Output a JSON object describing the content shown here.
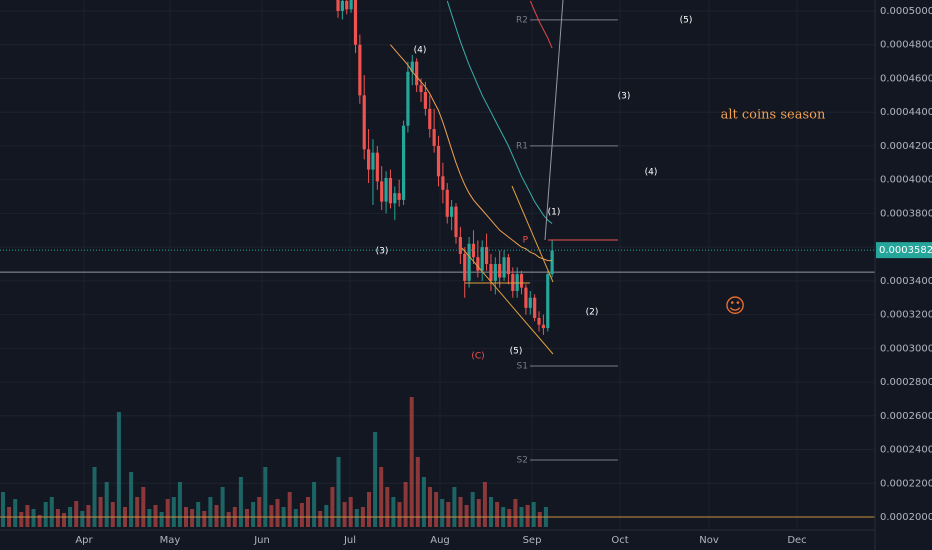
{
  "chart_data": {
    "type": "candlestick",
    "ylim": [
      0.0001923,
      0.00050652
    ],
    "yticks": [
      {
        "value": 0.0005,
        "label": "0.00050000"
      },
      {
        "value": 0.00048,
        "label": "0.00048000"
      },
      {
        "value": 0.00046,
        "label": "0.00046000"
      },
      {
        "value": 0.00044,
        "label": "0.00044000"
      },
      {
        "value": 0.00042,
        "label": "0.00042000"
      },
      {
        "value": 0.0004,
        "label": "0.00040000"
      },
      {
        "value": 0.00038,
        "label": "0.00038000"
      },
      {
        "value": 0.00036,
        "label": "0.00036000"
      },
      {
        "value": 0.00034,
        "label": "0.00034000"
      },
      {
        "value": 0.00032,
        "label": "0.00032000"
      },
      {
        "value": 0.0003,
        "label": "0.00030000"
      },
      {
        "value": 0.00028,
        "label": "0.00028000"
      },
      {
        "value": 0.00026,
        "label": "0.00026000"
      },
      {
        "value": 0.00024,
        "label": "0.00024000"
      },
      {
        "value": 0.00022,
        "label": "0.00022000"
      },
      {
        "value": 0.0002,
        "label": "0.00020000"
      }
    ],
    "months": [
      "Apr",
      "May",
      "Jun",
      "Jul",
      "Aug",
      "Sep",
      "Oct",
      "Nov",
      "Dec"
    ],
    "up_color": "#26a69a",
    "down_color": "#ef5350",
    "candles": [
      [
        0.000508,
        0.000512,
        0.000496,
        0.0005
      ],
      [
        0.0005,
        0.000509,
        0.000495,
        0.000506
      ],
      [
        0.000506,
        0.00051,
        0.000498,
        0.000501
      ],
      [
        0.000501,
        0.000513,
        0.000499,
        0.000509
      ],
      [
        0.000509,
        0.000514,
        0.000475,
        0.00048
      ],
      [
        0.00048,
        0.000486,
        0.000445,
        0.00045
      ],
      [
        0.00045,
        0.000462,
        0.000412,
        0.000418
      ],
      [
        0.000418,
        0.00043,
        0.000398,
        0.000406
      ],
      [
        0.000406,
        0.000424,
        0.000385,
        0.000416
      ],
      [
        0.000416,
        0.00042,
        0.000394,
        0.000399
      ],
      [
        0.000399,
        0.000408,
        0.000382,
        0.000387
      ],
      [
        0.000387,
        0.000405,
        0.00038,
        0.000401
      ],
      [
        0.000401,
        0.000406,
        0.000383,
        0.000386
      ],
      [
        0.000386,
        0.000396,
        0.000376,
        0.000392
      ],
      [
        0.000392,
        0.0004,
        0.000384,
        0.000388
      ],
      [
        0.000388,
        0.000435,
        0.000385,
        0.000432
      ],
      [
        0.000432,
        0.00047,
        0.000428,
        0.000464
      ],
      [
        0.000464,
        0.000474,
        0.000456,
        0.00047
      ],
      [
        0.00047,
        0.000472,
        0.000452,
        0.000456
      ],
      [
        0.000456,
        0.00046,
        0.000446,
        0.000452
      ],
      [
        0.000452,
        0.000458,
        0.000438,
        0.000442
      ],
      [
        0.000442,
        0.00045,
        0.000425,
        0.00043
      ],
      [
        0.00043,
        0.000442,
        0.000416,
        0.00042
      ],
      [
        0.00042,
        0.000426,
        0.000396,
        0.000402
      ],
      [
        0.000402,
        0.00041,
        0.000386,
        0.000394
      ],
      [
        0.000394,
        0.000398,
        0.000374,
        0.000378
      ],
      [
        0.000378,
        0.000388,
        0.00037,
        0.000384
      ],
      [
        0.000384,
        0.000386,
        0.000362,
        0.000366
      ],
      [
        0.000366,
        0.000372,
        0.00035,
        0.000356
      ],
      [
        0.000356,
        0.00036,
        0.00033,
        0.00034
      ],
      [
        0.00034,
        0.000366,
        0.000336,
        0.000362
      ],
      [
        0.000362,
        0.00037,
        0.00035,
        0.000354
      ],
      [
        0.000354,
        0.000364,
        0.000342,
        0.000346
      ],
      [
        0.000346,
        0.000364,
        0.00034,
        0.00036
      ],
      [
        0.00036,
        0.000368,
        0.000346,
        0.00035
      ],
      [
        0.00035,
        0.000356,
        0.000334,
        0.00034
      ],
      [
        0.00034,
        0.000354,
        0.000332,
        0.00035
      ],
      [
        0.00035,
        0.000358,
        0.000336,
        0.000342
      ],
      [
        0.000342,
        0.000358,
        0.00034,
        0.000354
      ],
      [
        0.000354,
        0.000356,
        0.000338,
        0.000344
      ],
      [
        0.000344,
        0.000348,
        0.00033,
        0.000334
      ],
      [
        0.000334,
        0.000348,
        0.00033,
        0.000344
      ],
      [
        0.000344,
        0.000346,
        0.000332,
        0.000336
      ],
      [
        0.000336,
        0.000338,
        0.00032,
        0.000324
      ],
      [
        0.000324,
        0.000334,
        0.00032,
        0.00033
      ],
      [
        0.00033,
        0.000332,
        0.000316,
        0.000318
      ],
      [
        0.000318,
        0.000322,
        0.00031,
        0.000314
      ],
      [
        0.000314,
        0.00032,
        0.000308,
        0.000312
      ],
      [
        0.000312,
        0.000346,
        0.00031,
        0.000344
      ],
      [
        0.000344,
        0.000364,
        0.000342,
        0.000358
      ]
    ],
    "series": [
      {
        "color": "#f0a050",
        "values": [
          null,
          null,
          null,
          null,
          null,
          null,
          null,
          null,
          null,
          null,
          null,
          null,
          0.00048,
          0.000477,
          0.000474,
          0.000471,
          0.000468,
          0.000464,
          0.000461,
          0.000458,
          0.000455,
          0.000451,
          0.000446,
          0.000441,
          0.000434,
          0.000426,
          0.000418,
          0.00041,
          0.000403,
          0.000397,
          0.000392,
          0.000388,
          0.000385,
          0.000382,
          0.000379,
          0.000376,
          0.000373,
          0.00037,
          0.000368,
          0.000366,
          0.000364,
          0.000362,
          0.00036,
          0.000359,
          0.000357,
          0.000356,
          0.000354,
          0.000353,
          0.000352,
          0.000352
        ]
      },
      {
        "color": "#3ab0a8",
        "values": [
          null,
          null,
          null,
          null,
          null,
          null,
          null,
          null,
          null,
          null,
          null,
          null,
          null,
          null,
          null,
          null,
          null,
          null,
          null,
          null,
          null,
          null,
          null,
          null,
          null,
          0.000506,
          0.000498,
          0.00049,
          0.000482,
          0.000475,
          0.000468,
          0.000462,
          0.000456,
          0.00045,
          0.000445,
          0.00044,
          0.000435,
          0.00043,
          0.000425,
          0.00042,
          0.000414,
          0.000408,
          0.000402,
          0.000397,
          0.000392,
          0.000387,
          0.000383,
          0.000379,
          0.000376,
          0.000374
        ]
      },
      {
        "color": "#e04848",
        "values": [
          null,
          null,
          null,
          null,
          null,
          null,
          null,
          null,
          null,
          null,
          null,
          null,
          null,
          null,
          null,
          null,
          null,
          null,
          null,
          null,
          null,
          null,
          null,
          null,
          null,
          null,
          null,
          null,
          null,
          null,
          null,
          null,
          null,
          null,
          null,
          null,
          null,
          null,
          null,
          null,
          null,
          null,
          null,
          null,
          0.000506,
          0.0005,
          0.000494,
          0.000489,
          0.000484,
          0.000478
        ]
      }
    ],
    "volume": [
      35,
      20,
      28,
      15,
      22,
      18,
      12,
      25,
      30,
      18,
      14,
      20,
      26,
      16,
      22,
      60,
      30,
      45,
      25,
      115,
      20,
      55,
      30,
      40,
      18,
      22,
      15,
      28,
      30,
      45,
      20,
      18,
      25,
      16,
      30,
      22,
      40,
      15,
      20,
      50,
      18,
      25,
      30,
      60,
      22,
      28,
      20,
      35,
      18,
      24,
      30,
      45,
      16,
      22,
      40,
      70,
      25,
      30,
      18,
      20,
      35,
      95,
      60,
      40,
      30,
      25,
      45,
      130,
      70,
      50,
      40,
      35,
      28,
      25,
      40,
      30,
      22,
      35,
      28,
      45,
      30,
      25,
      20,
      18,
      28,
      20,
      22,
      25,
      15,
      20
    ],
    "volume_up": [
      1,
      0,
      1,
      0,
      0,
      1,
      0,
      1,
      1,
      0,
      0,
      1,
      0,
      1,
      0,
      1,
      0,
      1,
      0,
      1,
      0,
      1,
      0,
      0,
      1,
      0,
      1,
      0,
      1,
      1,
      0,
      0,
      1,
      0,
      1,
      0,
      1,
      0,
      0,
      1,
      0,
      1,
      0,
      1,
      0,
      0,
      1,
      0,
      1,
      0,
      0,
      1,
      0,
      1,
      0,
      1,
      0,
      0,
      1,
      0,
      0,
      1,
      0,
      0,
      1,
      0,
      0,
      0,
      0,
      1,
      0,
      0,
      1,
      0,
      1,
      0,
      0,
      1,
      0,
      0,
      1,
      0,
      1,
      0,
      0,
      1,
      0,
      1,
      0,
      1
    ],
    "vlim": [
      0,
      140
    ],
    "pivots": [
      {
        "label": "R2",
        "value": 0.0004947
      },
      {
        "label": "R1",
        "value": 0.00042
      },
      {
        "label": "P",
        "value": 0.0003642
      },
      {
        "label": "S1",
        "value": 0.0002895
      },
      {
        "label": "S2",
        "value": 0.0002338
      }
    ],
    "hline": 0.0003452,
    "last_price": {
      "value": 0.00035822,
      "label": "0.00035822"
    },
    "waves": [
      "(5)",
      "(3)",
      "(4)",
      "(1)",
      "(2)",
      "(3)",
      "(4)",
      "(5)",
      "(C)"
    ],
    "annotation": "alt coins season",
    "emoji": "☺"
  }
}
